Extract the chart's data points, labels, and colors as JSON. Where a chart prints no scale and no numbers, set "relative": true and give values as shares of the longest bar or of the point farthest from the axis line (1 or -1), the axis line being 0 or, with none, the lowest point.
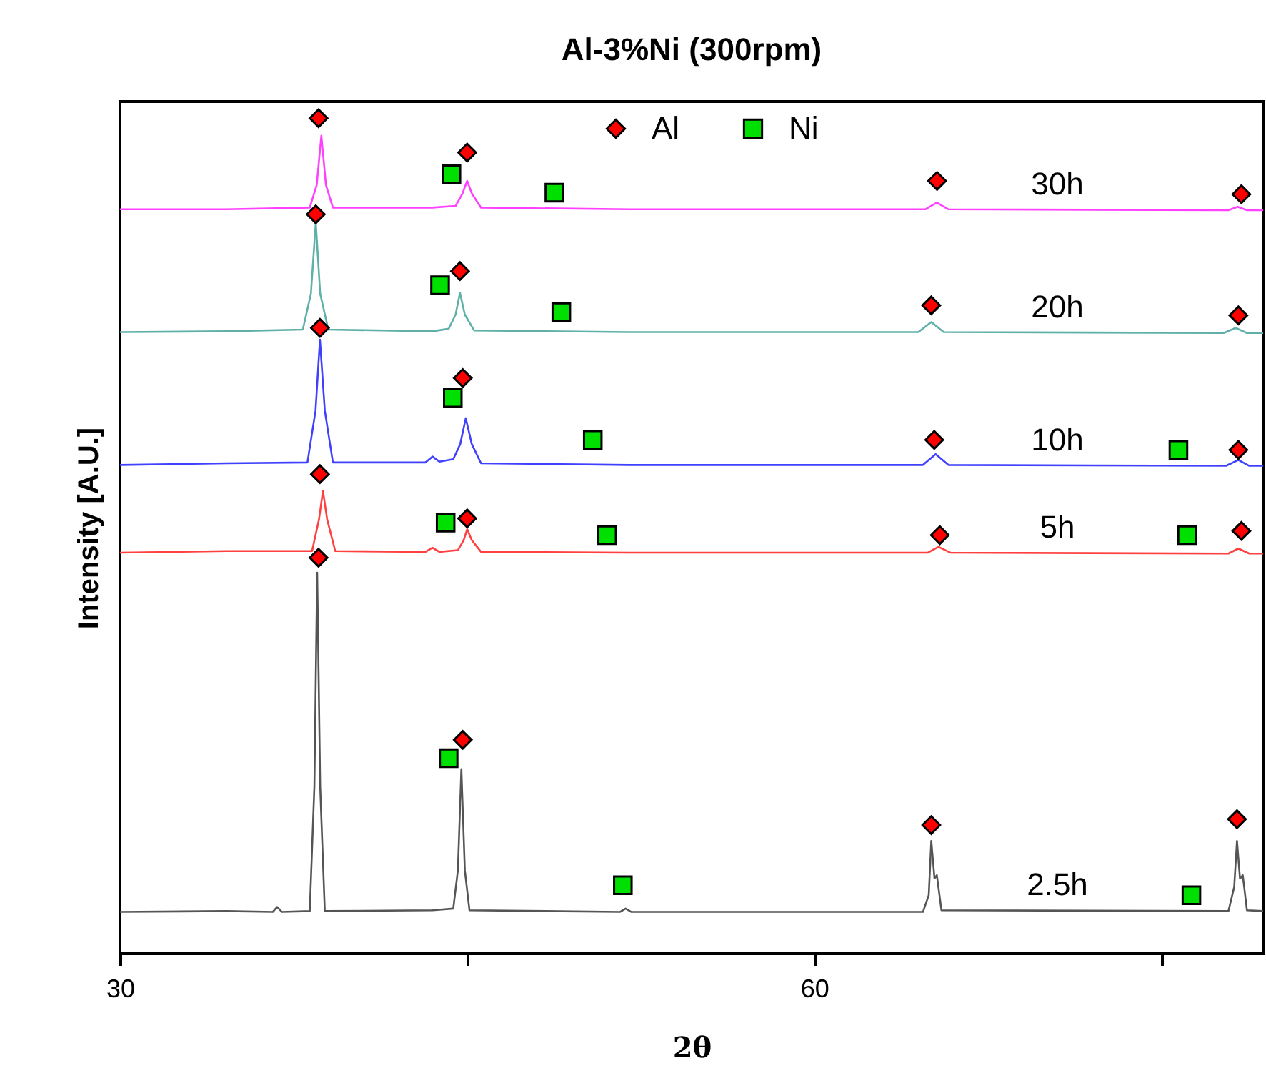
{
  "chart_data": {
    "type": "line",
    "title": "Al-3%Ni (300rpm)",
    "xlabel": "2θ",
    "ylabel": "Intensity [A.U.]",
    "relative": true,
    "tick_labels": "x",
    "legend": "top",
    "grid": false,
    "xlim": [
      30,
      79.4
    ],
    "xticks": [
      30,
      {
        "value": 45,
        "label": null
      },
      60,
      {
        "value": 75,
        "label": null
      }
    ],
    "series": [
      {
        "name": "30h",
        "type": "line",
        "color": "#ff40ff",
        "x": [
          30,
          34.6,
          38.2,
          38.5,
          38.7,
          38.9,
          39.2,
          43.5,
          44.5,
          44.8,
          45.0,
          45.2,
          45.6,
          52,
          64.8,
          65.3,
          65.8,
          77.9,
          78.3,
          78.7,
          79.4
        ],
        "values": [
          0.891,
          0.891,
          0.893,
          0.92,
          0.979,
          0.92,
          0.893,
          0.893,
          0.895,
          0.91,
          0.925,
          0.91,
          0.893,
          0.891,
          0.891,
          0.899,
          0.891,
          0.89,
          0.894,
          0.89,
          0.89
        ]
      },
      {
        "name": "20h",
        "type": "line",
        "color": "#5fb0a8",
        "x": [
          30,
          34.6,
          37.9,
          38.25,
          38.46,
          38.65,
          39.0,
          43.5,
          44.2,
          44.5,
          44.69,
          44.9,
          45.3,
          52,
          64.5,
          65.06,
          65.6,
          77.7,
          78.21,
          78.7,
          79.4
        ],
        "values": [
          0.744,
          0.745,
          0.747,
          0.79,
          0.875,
          0.79,
          0.747,
          0.745,
          0.748,
          0.765,
          0.791,
          0.765,
          0.746,
          0.744,
          0.744,
          0.756,
          0.744,
          0.743,
          0.749,
          0.743,
          0.743
        ]
      },
      {
        "name": "10h",
        "type": "line",
        "color": "#4040ff",
        "x": [
          30,
          34.6,
          38.1,
          38.45,
          38.64,
          38.85,
          39.2,
          43.2,
          43.5,
          43.8,
          44.4,
          44.7,
          44.94,
          45.2,
          45.6,
          52,
          64.7,
          65.25,
          65.8,
          77.8,
          78.33,
          78.8,
          79.4
        ],
        "values": [
          0.585,
          0.587,
          0.588,
          0.65,
          0.735,
          0.65,
          0.588,
          0.588,
          0.595,
          0.589,
          0.592,
          0.61,
          0.641,
          0.61,
          0.587,
          0.585,
          0.585,
          0.598,
          0.585,
          0.584,
          0.591,
          0.584,
          0.584
        ]
      },
      {
        "name": "5h",
        "type": "line",
        "color": "#ff4040",
        "x": [
          30,
          34.6,
          38.3,
          38.6,
          38.77,
          38.95,
          39.3,
          43.2,
          43.5,
          43.8,
          44.6,
          44.85,
          45.0,
          45.2,
          45.6,
          52,
          64.9,
          65.37,
          65.9,
          77.9,
          78.33,
          78.8,
          79.4
        ],
        "values": [
          0.48,
          0.482,
          0.482,
          0.52,
          0.554,
          0.52,
          0.482,
          0.481,
          0.486,
          0.481,
          0.483,
          0.495,
          0.508,
          0.495,
          0.481,
          0.48,
          0.48,
          0.487,
          0.48,
          0.479,
          0.485,
          0.479,
          0.479
        ]
      },
      {
        "name": "2.5h",
        "type": "line",
        "color": "#555555",
        "x": [
          30,
          34.6,
          36.6,
          36.79,
          37.0,
          38.2,
          38.4,
          38.52,
          38.65,
          38.85,
          43.5,
          44.4,
          44.6,
          44.75,
          44.9,
          45.1,
          51.6,
          51.85,
          52.1,
          64.7,
          64.95,
          65.06,
          65.2,
          65.3,
          65.5,
          77.9,
          78.15,
          78.27,
          78.4,
          78.52,
          78.7,
          79.4
        ],
        "values": [
          0.05,
          0.051,
          0.05,
          0.056,
          0.05,
          0.051,
          0.2,
          0.456,
          0.2,
          0.051,
          0.052,
          0.054,
          0.1,
          0.221,
          0.1,
          0.052,
          0.05,
          0.054,
          0.05,
          0.05,
          0.07,
          0.135,
          0.09,
          0.094,
          0.052,
          0.051,
          0.08,
          0.135,
          0.09,
          0.094,
          0.052,
          0.051
        ]
      },
      {
        "name": "Al",
        "type": "scatter",
        "marker": "diamond",
        "color": "#ff0000",
        "x": [
          38.58,
          45.0,
          65.31,
          78.46,
          38.46,
          44.69,
          65.06,
          78.33,
          38.64,
          44.81,
          65.19,
          78.33,
          38.64,
          45.0,
          65.43,
          78.46,
          38.58,
          44.81,
          65.06,
          78.27
        ],
        "values": [
          1.0,
          0.959,
          0.925,
          0.909,
          0.885,
          0.817,
          0.776,
          0.764,
          0.749,
          0.689,
          0.615,
          0.603,
          0.574,
          0.521,
          0.501,
          0.506,
          0.474,
          0.256,
          0.154,
          0.161
        ]
      },
      {
        "name": "Ni",
        "type": "scatter",
        "marker": "square",
        "color": "#00e000",
        "x": [
          44.32,
          48.77,
          43.83,
          49.07,
          44.38,
          50.43,
          75.74,
          44.07,
          51.05,
          76.11,
          44.2,
          51.73,
          76.3
        ],
        "values": [
          0.933,
          0.911,
          0.8,
          0.768,
          0.665,
          0.615,
          0.603,
          0.516,
          0.501,
          0.501,
          0.234,
          0.082,
          0.07
        ]
      }
    ]
  }
}
